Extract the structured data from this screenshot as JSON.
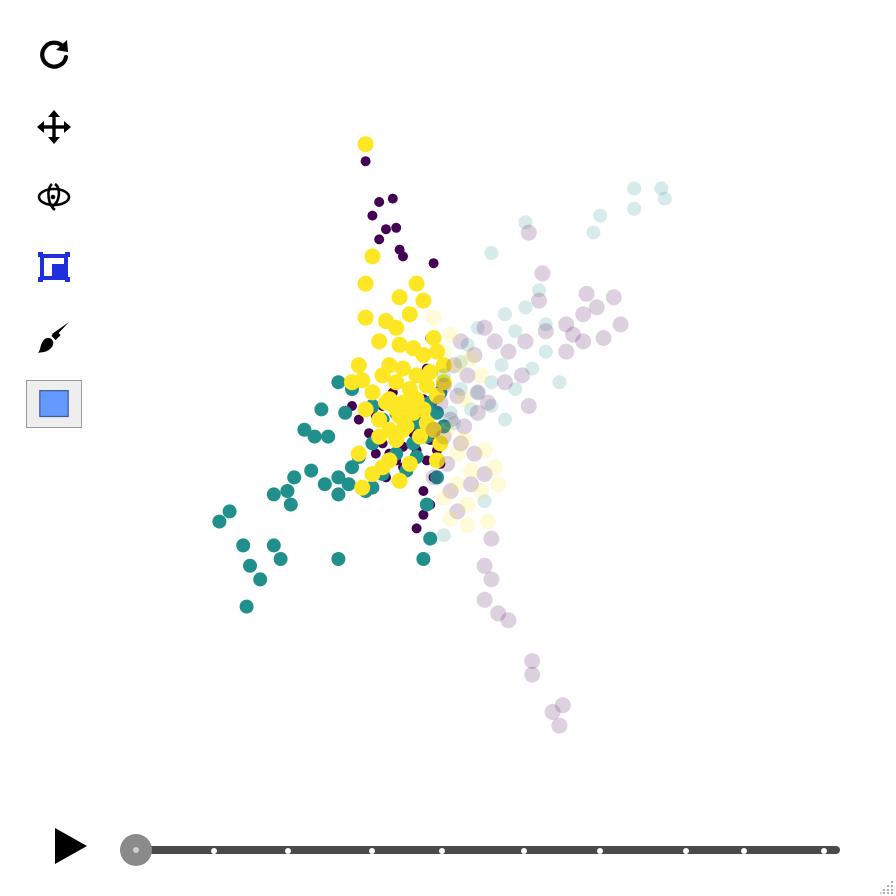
{
  "toolbar": {
    "tools": [
      {
        "name": "reset-view-icon"
      },
      {
        "name": "pan-icon"
      },
      {
        "name": "orbit-rotate-icon"
      },
      {
        "name": "box-select-icon",
        "color": "#1f2fe0"
      },
      {
        "name": "paint-brush-icon"
      },
      {
        "name": "color-swatch-icon",
        "color": "#6699ff",
        "active": true
      }
    ]
  },
  "player": {
    "play_icon": "play-icon",
    "slider_value": 0,
    "slider_steps": 10
  },
  "colors": {
    "class_a": "#440154",
    "class_b": "#21908d",
    "class_c": "#fde725",
    "background": "#ffffff"
  },
  "chart_data": {
    "type": "scatter",
    "title": "",
    "xlabel": "",
    "ylabel": "",
    "axes_visible": false,
    "grid": false,
    "xlim": [
      -5,
      5
    ],
    "ylim": [
      -5,
      5
    ],
    "series": [
      {
        "color": "#440154",
        "opacity": 1.0,
        "radius": 5,
        "points": [
          [
            -0.8,
            4.1
          ],
          [
            -0.6,
            3.5
          ],
          [
            -0.4,
            3.55
          ],
          [
            -0.7,
            3.3
          ],
          [
            -0.5,
            3.1
          ],
          [
            -0.35,
            3.12
          ],
          [
            -0.6,
            2.95
          ],
          [
            -0.3,
            2.8
          ],
          [
            -0.25,
            2.7
          ],
          [
            0.2,
            2.6
          ],
          [
            0.15,
            1.5
          ],
          [
            0.1,
            1.05
          ],
          [
            0.05,
            0.6
          ],
          [
            -0.4,
            0.7
          ],
          [
            -0.55,
            0.5
          ],
          [
            -0.65,
            0.35
          ],
          [
            -0.9,
            0.3
          ],
          [
            -1.0,
            0.5
          ],
          [
            -0.45,
            0.55
          ],
          [
            -0.2,
            0.3
          ],
          [
            -0.1,
            0.1
          ],
          [
            0.05,
            0.25
          ],
          [
            0.15,
            0.0
          ],
          [
            -0.75,
            0.1
          ],
          [
            -0.55,
            -0.05
          ],
          [
            -0.25,
            -0.1
          ],
          [
            -0.05,
            -0.15
          ],
          [
            0.1,
            -0.3
          ],
          [
            -0.35,
            -0.3
          ],
          [
            -0.5,
            -0.55
          ],
          [
            0.2,
            -0.55
          ],
          [
            0.05,
            -0.75
          ],
          [
            -0.25,
            -0.4
          ],
          [
            -0.45,
            -0.2
          ],
          [
            -0.65,
            -0.2
          ],
          [
            0.3,
            -0.35
          ],
          [
            0.25,
            -0.15
          ],
          [
            0.15,
            -0.95
          ],
          [
            0.05,
            -1.1
          ],
          [
            -0.05,
            -1.3
          ]
        ]
      },
      {
        "color": "#21908d",
        "opacity": 1.0,
        "radius": 7,
        "points": [
          [
            -1.0,
            0.75
          ],
          [
            -1.2,
            0.85
          ],
          [
            -1.45,
            0.45
          ],
          [
            -1.7,
            0.15
          ],
          [
            -1.55,
            0.05
          ],
          [
            -1.35,
            0.05
          ],
          [
            -1.1,
            0.4
          ],
          [
            -0.7,
            0.5
          ],
          [
            -0.55,
            0.3
          ],
          [
            -0.35,
            0.4
          ],
          [
            -0.2,
            0.5
          ],
          [
            -0.05,
            0.25
          ],
          [
            0.15,
            0.55
          ],
          [
            0.25,
            0.4
          ],
          [
            0.35,
            0.2
          ],
          [
            0.3,
            0.7
          ],
          [
            -0.7,
            -0.05
          ],
          [
            -0.9,
            -0.25
          ],
          [
            -1.0,
            -0.4
          ],
          [
            -1.05,
            -0.65
          ],
          [
            -0.8,
            -0.75
          ],
          [
            -1.2,
            -0.55
          ],
          [
            -1.6,
            -0.45
          ],
          [
            -1.85,
            -0.55
          ],
          [
            -1.95,
            -0.75
          ],
          [
            -2.15,
            -0.8
          ],
          [
            -1.9,
            -0.95
          ],
          [
            -1.2,
            -0.8
          ],
          [
            -1.4,
            -0.65
          ],
          [
            -0.7,
            -0.7
          ],
          [
            -0.55,
            -0.5
          ],
          [
            -0.35,
            -0.2
          ],
          [
            -0.1,
            -0.05
          ],
          [
            0.1,
            0.05
          ],
          [
            -0.2,
            -0.45
          ],
          [
            -0.05,
            -0.25
          ],
          [
            0.25,
            -0.55
          ],
          [
            0.1,
            -0.95
          ],
          [
            0.15,
            -1.45
          ],
          [
            0.05,
            -1.75
          ],
          [
            -2.8,
            -1.05
          ],
          [
            -2.95,
            -1.2
          ],
          [
            -2.6,
            -1.55
          ],
          [
            -2.5,
            -1.85
          ],
          [
            -2.35,
            -2.05
          ],
          [
            -2.15,
            -1.55
          ],
          [
            -2.05,
            -1.75
          ],
          [
            -1.2,
            -1.75
          ],
          [
            -2.55,
            -2.45
          ]
        ]
      },
      {
        "color": "#fde725",
        "opacity": 1.0,
        "radius": 8,
        "points": [
          [
            -0.8,
            4.35
          ],
          [
            -0.7,
            2.7
          ],
          [
            -0.8,
            2.3
          ],
          [
            -0.3,
            2.1
          ],
          [
            -0.05,
            2.3
          ],
          [
            0.05,
            2.05
          ],
          [
            -0.15,
            1.85
          ],
          [
            0.2,
            1.5
          ],
          [
            -0.8,
            1.8
          ],
          [
            -0.5,
            1.75
          ],
          [
            -0.35,
            1.65
          ],
          [
            -0.6,
            1.45
          ],
          [
            -0.3,
            1.4
          ],
          [
            -0.1,
            1.35
          ],
          [
            0.05,
            1.25
          ],
          [
            0.25,
            1.3
          ],
          [
            -0.9,
            1.1
          ],
          [
            -0.45,
            1.1
          ],
          [
            -0.25,
            1.05
          ],
          [
            -0.05,
            0.95
          ],
          [
            0.15,
            1.0
          ],
          [
            0.35,
            1.1
          ],
          [
            -1.0,
            0.85
          ],
          [
            -0.85,
            0.88
          ],
          [
            -0.55,
            0.95
          ],
          [
            -0.35,
            0.85
          ],
          [
            -0.15,
            0.75
          ],
          [
            0.1,
            0.8
          ],
          [
            0.25,
            0.65
          ],
          [
            -0.7,
            0.7
          ],
          [
            -0.45,
            0.6
          ],
          [
            -0.25,
            0.55
          ],
          [
            -0.05,
            0.6
          ],
          [
            0.35,
            0.85
          ],
          [
            -0.8,
            0.45
          ],
          [
            -0.3,
            0.35
          ],
          [
            0.05,
            0.45
          ],
          [
            0.2,
            0.15
          ],
          [
            -0.45,
            0.15
          ],
          [
            -0.2,
            0.2
          ],
          [
            -0.6,
            0.05
          ],
          [
            -0.35,
            0.0
          ],
          [
            0.0,
            0.05
          ],
          [
            0.3,
            -0.05
          ],
          [
            -0.9,
            -0.2
          ],
          [
            -0.45,
            -0.3
          ],
          [
            -0.15,
            -0.35
          ],
          [
            0.25,
            -0.3
          ],
          [
            -0.7,
            -0.5
          ],
          [
            -0.85,
            -0.7
          ],
          [
            -0.3,
            -0.6
          ],
          [
            -0.55,
            -0.4
          ],
          [
            -0.1,
            0.4
          ],
          [
            -0.5,
            0.55
          ],
          [
            -0.25,
            0.15
          ],
          [
            0.1,
            0.25
          ],
          [
            -0.6,
            0.3
          ],
          [
            -0.35,
            0.45
          ]
        ]
      },
      {
        "color": "#21908d",
        "opacity": 0.18,
        "radius": 7,
        "points": [
          [
            3.15,
            3.7
          ],
          [
            3.55,
            3.7
          ],
          [
            3.6,
            3.55
          ],
          [
            3.15,
            3.4
          ],
          [
            2.65,
            3.3
          ],
          [
            2.55,
            3.05
          ],
          [
            1.55,
            3.2
          ],
          [
            1.05,
            2.75
          ],
          [
            1.75,
            2.2
          ],
          [
            1.55,
            1.95
          ],
          [
            1.25,
            1.85
          ],
          [
            1.4,
            1.6
          ],
          [
            1.85,
            1.7
          ],
          [
            1.85,
            1.3
          ],
          [
            2.05,
            0.85
          ],
          [
            1.2,
            1.1
          ],
          [
            1.05,
            0.85
          ],
          [
            0.85,
            0.7
          ],
          [
            0.6,
            0.75
          ],
          [
            0.75,
            0.45
          ],
          [
            0.45,
            0.4
          ],
          [
            0.5,
            0.25
          ],
          [
            1.05,
            0.5
          ],
          [
            1.25,
            0.3
          ],
          [
            0.85,
            1.65
          ],
          [
            0.7,
            1.4
          ],
          [
            0.6,
            1.15
          ],
          [
            0.35,
            0.95
          ],
          [
            0.95,
            -0.9
          ],
          [
            0.35,
            -1.4
          ],
          [
            1.65,
            1.05
          ],
          [
            1.4,
            0.75
          ]
        ]
      },
      {
        "color": "#440154",
        "opacity": 0.18,
        "radius": 8,
        "points": [
          [
            1.6,
            3.05
          ],
          [
            1.8,
            2.45
          ],
          [
            1.75,
            2.05
          ],
          [
            2.45,
            2.15
          ],
          [
            2.6,
            1.95
          ],
          [
            2.4,
            1.85
          ],
          [
            2.85,
            2.1
          ],
          [
            2.95,
            1.7
          ],
          [
            2.7,
            1.5
          ],
          [
            2.4,
            1.45
          ],
          [
            2.15,
            1.3
          ],
          [
            2.25,
            1.55
          ],
          [
            2.15,
            1.7
          ],
          [
            1.85,
            1.6
          ],
          [
            1.55,
            1.45
          ],
          [
            1.3,
            1.3
          ],
          [
            1.1,
            1.45
          ],
          [
            0.95,
            1.65
          ],
          [
            0.8,
            1.25
          ],
          [
            0.6,
            1.45
          ],
          [
            0.5,
            1.1
          ],
          [
            0.7,
            0.95
          ],
          [
            0.85,
            0.7
          ],
          [
            0.55,
            0.65
          ],
          [
            0.35,
            0.8
          ],
          [
            0.3,
            0.55
          ],
          [
            0.45,
            0.3
          ],
          [
            0.65,
            0.2
          ],
          [
            0.85,
            0.4
          ],
          [
            1.0,
            0.55
          ],
          [
            1.25,
            0.85
          ],
          [
            1.5,
            0.95
          ],
          [
            1.6,
            0.5
          ],
          [
            0.2,
            0.15
          ],
          [
            0.35,
            0.05
          ],
          [
            0.6,
            -0.05
          ],
          [
            0.8,
            -0.2
          ],
          [
            0.4,
            -0.35
          ],
          [
            0.2,
            -0.55
          ],
          [
            0.45,
            -0.75
          ],
          [
            0.75,
            -0.65
          ],
          [
            0.95,
            -0.5
          ],
          [
            0.55,
            -1.05
          ],
          [
            1.05,
            -1.45
          ],
          [
            0.95,
            -1.85
          ],
          [
            1.05,
            -2.05
          ],
          [
            0.95,
            -2.35
          ],
          [
            1.15,
            -2.55
          ],
          [
            1.3,
            -2.65
          ],
          [
            1.65,
            -3.25
          ],
          [
            1.65,
            -3.45
          ],
          [
            1.95,
            -4.0
          ],
          [
            2.1,
            -3.9
          ],
          [
            2.05,
            -4.2
          ]
        ]
      },
      {
        "color": "#fde725",
        "opacity": 0.18,
        "radius": 8,
        "points": [
          [
            0.2,
            1.8
          ],
          [
            0.45,
            1.55
          ],
          [
            0.35,
            1.3
          ],
          [
            0.55,
            1.1
          ],
          [
            0.75,
            1.2
          ],
          [
            0.9,
            0.95
          ],
          [
            0.65,
            0.6
          ],
          [
            0.4,
            0.15
          ],
          [
            0.65,
            0.0
          ],
          [
            0.95,
            -0.15
          ],
          [
            1.1,
            -0.4
          ],
          [
            0.75,
            -0.45
          ],
          [
            0.55,
            -0.65
          ],
          [
            0.35,
            -0.85
          ],
          [
            0.7,
            -0.95
          ],
          [
            0.9,
            -0.75
          ],
          [
            1.15,
            -0.65
          ],
          [
            0.45,
            -1.15
          ],
          [
            0.7,
            -1.25
          ],
          [
            1.0,
            -1.2
          ],
          [
            0.55,
            -0.2
          ],
          [
            0.3,
            -0.05
          ]
        ]
      }
    ]
  }
}
